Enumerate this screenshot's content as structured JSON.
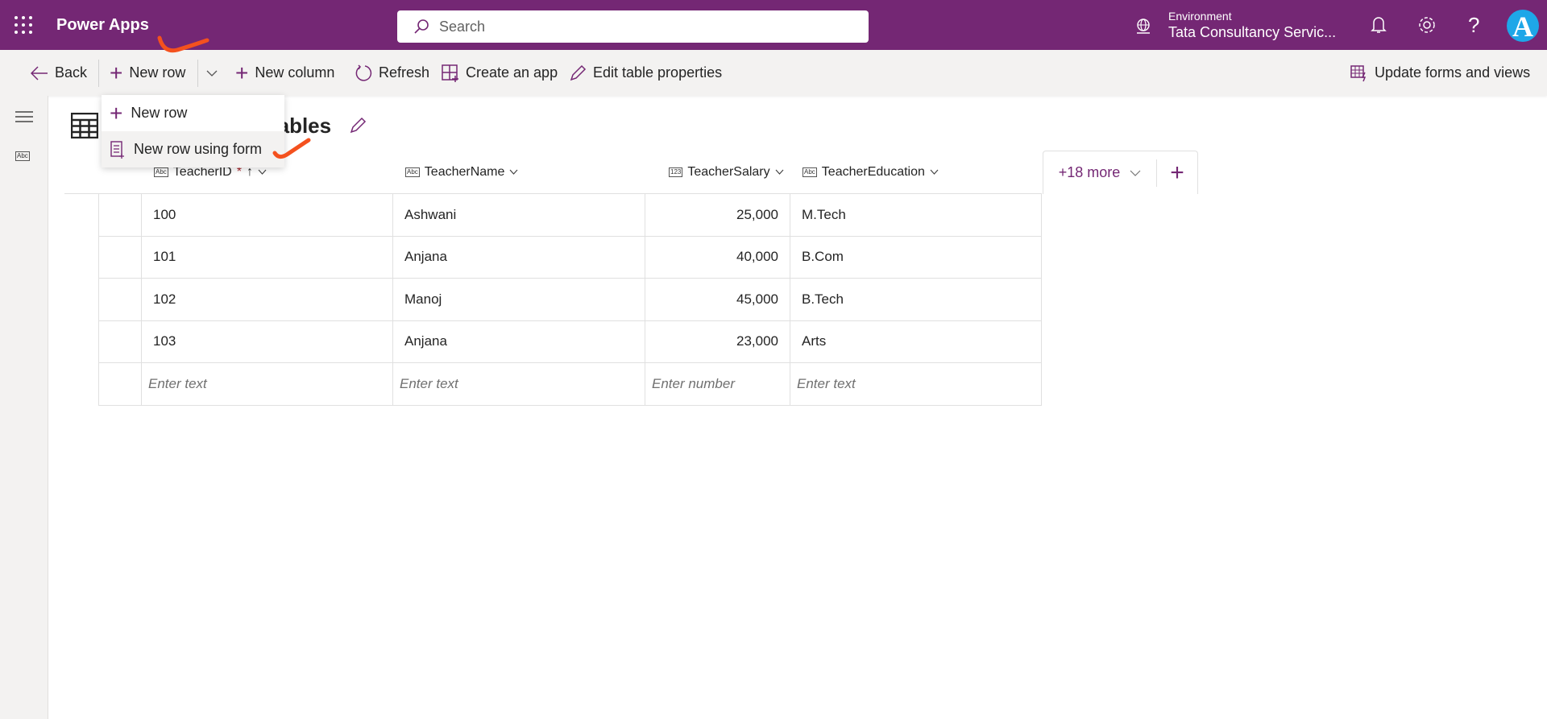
{
  "header": {
    "app_name": "Power Apps",
    "search_placeholder": "Search",
    "environment_label": "Environment",
    "environment_value": "Tata Consultancy Servic...",
    "avatar_letter": "A"
  },
  "toolbar": {
    "back": "Back",
    "new_row": "New row",
    "new_column": "New column",
    "refresh": "Refresh",
    "create_app": "Create an app",
    "edit_table": "Edit table properties",
    "update_forms": "Update forms and views"
  },
  "dropdown": {
    "items": [
      {
        "label": "New row"
      },
      {
        "label": "New row using form"
      }
    ]
  },
  "table": {
    "title": "tTables",
    "columns": [
      {
        "label": "TeacherID",
        "required": "*",
        "sort": "↑",
        "type": "Abc"
      },
      {
        "label": "TeacherName",
        "type": "Abc"
      },
      {
        "label": "TeacherSalary",
        "type": "123"
      },
      {
        "label": "TeacherEducation",
        "type": "Abc"
      }
    ],
    "rows": [
      [
        "100",
        "Ashwani",
        "25,000",
        "M.Tech"
      ],
      [
        "101",
        "Anjana",
        "40,000",
        "B.Com"
      ],
      [
        "102",
        "Manoj",
        "45,000",
        "B.Tech"
      ],
      [
        "103",
        "Anjana",
        "23,000",
        "Arts"
      ]
    ],
    "placeholders": [
      "Enter text",
      "Enter text",
      "Enter number",
      "Enter text"
    ],
    "more_columns": "+18 more"
  },
  "sidebar": {
    "abc_icon": "Abc"
  },
  "colors": {
    "brand": "#742774",
    "annotation": "#f4511e"
  }
}
